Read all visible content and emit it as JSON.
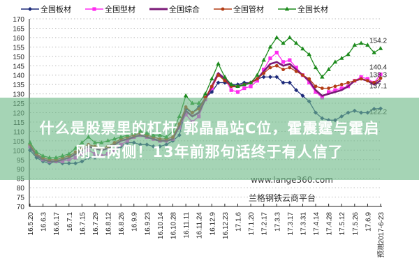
{
  "chart_data": {
    "type": "line",
    "title": "",
    "xlabel": "",
    "ylabel": "",
    "ylim": [
      70,
      170
    ],
    "yticks": [
      70,
      75,
      80,
      85,
      90,
      95,
      100,
      105,
      110,
      115,
      120,
      125,
      130,
      135,
      140,
      145,
      150,
      155,
      160,
      165,
      170
    ],
    "grid": "horizontal-dotted",
    "legend_position": "top",
    "x_tick_labels": [
      "16.5.20",
      "16.6.3",
      "16.6.17",
      "16.7.1",
      "16.7.15",
      "16.7.29",
      "16.8.12",
      "16.8.26",
      "16.9.9",
      "16.9.23",
      "16.10.14",
      "16.10.28",
      "16.11.11",
      "16.11.24",
      "16.12.9",
      "16.12.23",
      "17.1.6",
      "17.1.20",
      "17.2.17",
      "17.3.3",
      "17.3.17",
      "17.3.31",
      "17.4.14",
      "17.4.28",
      "17.5.12",
      "17.5.26",
      "17.6.9",
      "预测2017-6-23"
    ],
    "series": [
      {
        "name": "全国板材",
        "color": "#1c2a7a",
        "marker": "diamond",
        "end_label": "122.2",
        "values": [
          100,
          96,
          94,
          93,
          94,
          93,
          93,
          93,
          94,
          96,
          96,
          97,
          98,
          100,
          102,
          104,
          104,
          103,
          103,
          102,
          102,
          103,
          105,
          108,
          122,
          120,
          123,
          128,
          131,
          136,
          136,
          135,
          135,
          136,
          136,
          138,
          139,
          139,
          139,
          136,
          136,
          132,
          129,
          126,
          120,
          117,
          116,
          116,
          118,
          120,
          121,
          120,
          120,
          122,
          122.2
        ]
      },
      {
        "name": "全国型材",
        "color": "#ff2cf0",
        "marker": "square",
        "end_label": "140.4",
        "values": [
          102,
          98,
          95,
          94,
          94,
          94,
          95,
          96,
          98,
          100,
          98,
          97,
          98,
          100,
          103,
          105,
          107,
          108,
          107,
          106,
          105,
          105,
          106,
          112,
          119,
          115,
          118,
          127,
          133,
          140,
          138,
          132,
          131,
          133,
          134,
          137,
          143,
          149,
          152,
          147,
          148,
          144,
          140,
          136,
          131,
          128,
          131,
          132,
          133,
          134,
          137,
          139,
          138,
          136,
          140.4
        ]
      },
      {
        "name": "全国综合",
        "color": "#7b1a78",
        "marker": "none",
        "end_label": "137.1",
        "values": [
          102,
          97,
          95,
          94,
          94,
          95,
          96,
          98,
          100,
          102,
          101,
          100,
          101,
          103,
          105,
          106,
          107,
          108,
          107,
          106,
          105,
          105,
          106,
          113,
          121,
          118,
          120,
          127,
          134,
          141,
          138,
          134,
          134,
          135,
          136,
          138,
          142,
          146,
          147,
          145,
          146,
          143,
          140,
          137,
          132,
          129,
          130,
          131,
          132,
          134,
          137,
          138,
          137,
          135,
          137.1
        ]
      },
      {
        "name": "全国管材",
        "color": "#b23c14",
        "marker": "circle",
        "end_label": "138.3",
        "values": [
          103,
          98,
          96,
          95,
          95,
          96,
          97,
          99,
          101,
          103,
          102,
          101,
          102,
          104,
          106,
          107,
          108,
          109,
          108,
          107,
          106,
          106,
          107,
          114,
          123,
          120,
          122,
          128,
          134,
          140,
          137,
          134,
          134,
          135,
          136,
          138,
          141,
          144,
          145,
          143,
          144,
          142,
          140,
          138,
          134,
          133,
          133,
          134,
          135,
          136,
          137,
          138,
          137,
          136,
          138.3
        ]
      },
      {
        "name": "全国长材",
        "color": "#1c8a1c",
        "marker": "triangle",
        "end_label": "154.2",
        "values": [
          104,
          99,
          97,
          96,
          96,
          97,
          98,
          101,
          104,
          107,
          104,
          104,
          105,
          106,
          107,
          108,
          109,
          110,
          109,
          108,
          108,
          107,
          110,
          118,
          129,
          125,
          125,
          130,
          138,
          146,
          139,
          135,
          134,
          135,
          136,
          140,
          148,
          155,
          160,
          157,
          160,
          157,
          154,
          151,
          144,
          139,
          143,
          147,
          149,
          151,
          156,
          157,
          156,
          152,
          154.2
        ]
      }
    ]
  },
  "watermark": {
    "url": "www.lange360.com",
    "platform": "兰格钢铁云商平台"
  },
  "overlay": {
    "line1": "什么是股票里的杠杆 郭晶晶站C位，霍震霆与霍启",
    "line2": "刚立两侧！13年前那句话终于有人信了"
  }
}
